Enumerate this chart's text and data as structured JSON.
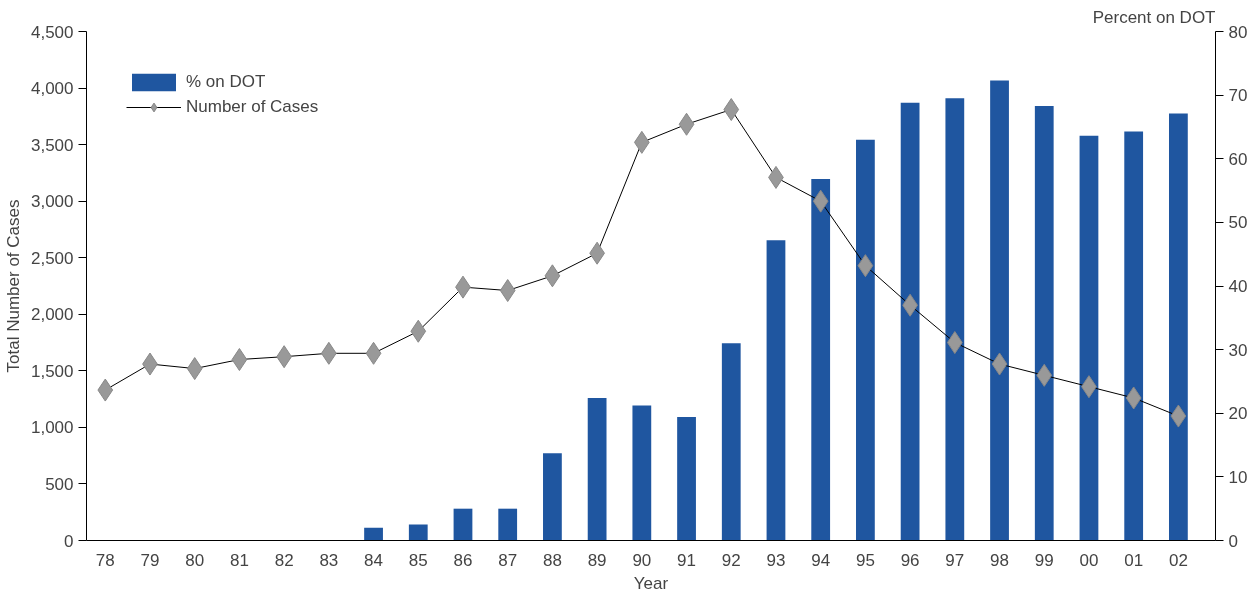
{
  "chart_data": {
    "type": "bar",
    "xlabel": "Year",
    "ylabel": "Total Number of Cases",
    "y2label": "Percent on DOT",
    "categories": [
      "78",
      "79",
      "80",
      "81",
      "82",
      "83",
      "84",
      "85",
      "86",
      "87",
      "88",
      "89",
      "90",
      "91",
      "92",
      "93",
      "94",
      "95",
      "96",
      "97",
      "98",
      "99",
      "00",
      "01",
      "02"
    ],
    "series": [
      {
        "name": "% on DOT",
        "axis": "y2",
        "color": "#1f56a0",
        "values": [
          null,
          null,
          null,
          null,
          null,
          null,
          2,
          2.5,
          5,
          5,
          13.7,
          22.4,
          21.2,
          19.4,
          31,
          47.2,
          56.8,
          63,
          68.8,
          69.5,
          72.3,
          68.3,
          63.6,
          64.3,
          67.1
        ]
      },
      {
        "name": "Number of Cases",
        "type": "line",
        "color": "#999999",
        "marker": "diamond",
        "values": [
          1330,
          1560,
          1520,
          1600,
          1625,
          1655,
          1655,
          1850,
          2240,
          2210,
          2340,
          2540,
          3520,
          3680,
          3810,
          3210,
          3000,
          2430,
          2080,
          1750,
          1560,
          1460,
          1360,
          1260,
          1100
        ]
      }
    ],
    "ylim": [
      0,
      4500
    ],
    "yticks": [
      {
        "value": 0,
        "label": "0"
      },
      {
        "value": 500,
        "label": "500"
      },
      {
        "value": 1000,
        "label": "1,000"
      },
      {
        "value": 1500,
        "label": "1,500"
      },
      {
        "value": 2000,
        "label": "2,000"
      },
      {
        "value": 2500,
        "label": "2,500"
      },
      {
        "value": 3000,
        "label": "3,000"
      },
      {
        "value": 3500,
        "label": "3,500"
      },
      {
        "value": 4000,
        "label": "4,000"
      },
      {
        "value": 4500,
        "label": "4,500"
      }
    ],
    "y2lim": [
      0,
      80
    ],
    "y2ticks": [
      0,
      10,
      20,
      30,
      40,
      50,
      60,
      70,
      80
    ],
    "grid": false,
    "legend": "top left"
  }
}
